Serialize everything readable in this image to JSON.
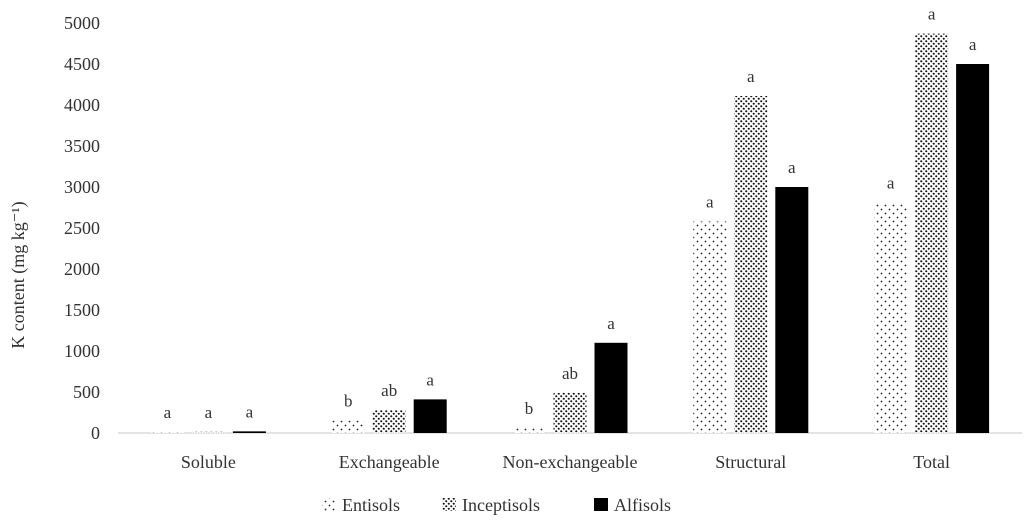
{
  "chart_data": {
    "type": "bar",
    "ylabel": "K content (mg kg⁻¹)",
    "xlabel": "",
    "ylim": [
      0,
      5000
    ],
    "yticks": [
      0,
      500,
      1000,
      1500,
      2000,
      2500,
      3000,
      3500,
      4000,
      4500,
      5000
    ],
    "grid": false,
    "legend_position": "bottom",
    "categories": [
      "Soluble",
      "Exchangeable",
      "Non-exchangeable",
      "Structural",
      "Total"
    ],
    "series": [
      {
        "name": "Entisols",
        "pattern": "sparse-dots",
        "values": [
          10,
          150,
          60,
          2580,
          2810
        ],
        "labels": [
          "a",
          "b",
          "b",
          "a",
          "a"
        ]
      },
      {
        "name": "Inceptisols",
        "pattern": "dense-dots",
        "values": [
          15,
          280,
          490,
          4110,
          4870
        ],
        "labels": [
          "a",
          "ab",
          "ab",
          "a",
          "a"
        ]
      },
      {
        "name": "Alfisols",
        "pattern": "solid-black",
        "values": [
          20,
          410,
          1100,
          3000,
          4500
        ],
        "labels": [
          "a",
          "a",
          "a",
          "a",
          "a"
        ]
      }
    ]
  }
}
